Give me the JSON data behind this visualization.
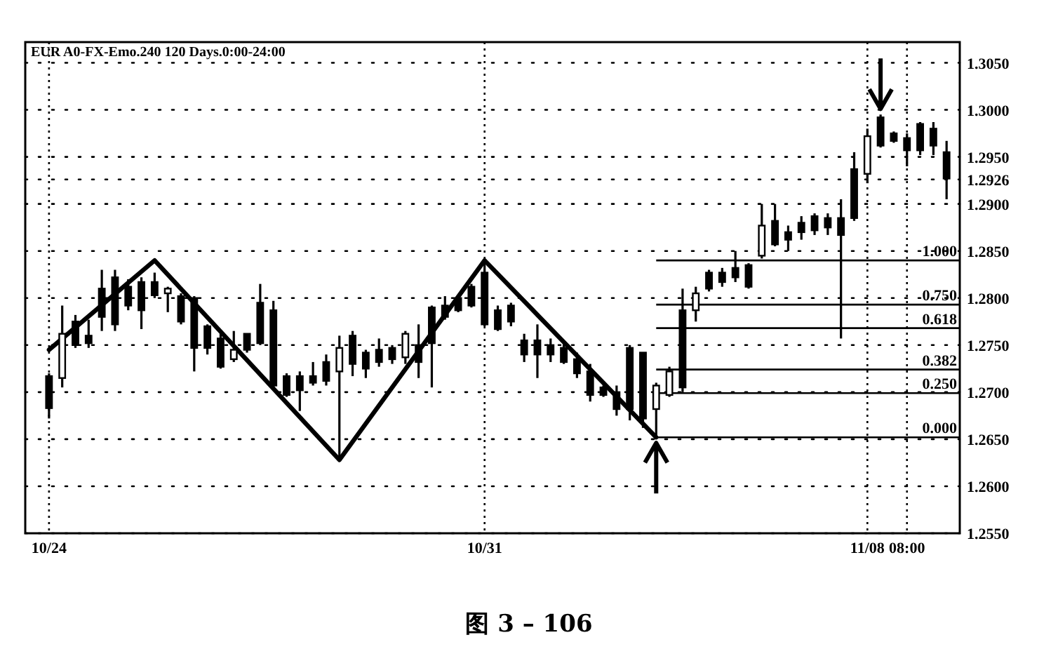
{
  "chart_data": {
    "type": "candlestick",
    "title": "EUR A0-FX-Emo.240  120 Days.0:00-24:00",
    "categories": [
      "10/24",
      null,
      null,
      null,
      null,
      null,
      null,
      null,
      null,
      null,
      null,
      null,
      null,
      null,
      null,
      null,
      null,
      null,
      null,
      null,
      null,
      null,
      null,
      null,
      null,
      null,
      null,
      null,
      null,
      null,
      null,
      null,
      null,
      "10/31",
      null,
      null,
      null,
      null,
      null,
      null,
      null,
      null,
      null,
      null,
      null,
      null,
      null,
      null,
      null,
      null,
      null,
      null,
      null,
      null,
      null,
      null,
      null,
      null,
      null,
      null,
      null,
      null,
      "11/08",
      null,
      null,
      "08:00",
      null,
      null,
      null
    ],
    "color": "#000000",
    "ohlc": [
      [
        1.2717,
        1.272,
        1.2672,
        1.2683
      ],
      [
        1.2715,
        1.2792,
        1.2705,
        1.2762
      ],
      [
        1.2775,
        1.2782,
        1.2747,
        1.275
      ],
      [
        1.276,
        1.2777,
        1.2747,
        1.2752
      ],
      [
        1.281,
        1.283,
        1.2765,
        1.278
      ],
      [
        1.2822,
        1.283,
        1.2765,
        1.2772
      ],
      [
        1.2812,
        1.282,
        1.2787,
        1.2792
      ],
      [
        1.2817,
        1.2822,
        1.2767,
        1.2787
      ],
      [
        1.2817,
        1.2827,
        1.28,
        1.2803
      ],
      [
        1.2805,
        1.2812,
        1.2785,
        1.281
      ],
      [
        1.2802,
        1.2805,
        1.2772,
        1.2775
      ],
      [
        1.28,
        1.2802,
        1.2722,
        1.2747
      ],
      [
        1.277,
        1.2772,
        1.274,
        1.2747
      ],
      [
        1.2757,
        1.2762,
        1.2725,
        1.2727
      ],
      [
        1.2735,
        1.2765,
        1.2732,
        1.2745
      ],
      [
        1.2762,
        1.2762,
        1.2742,
        1.2745
      ],
      [
        1.2795,
        1.2815,
        1.275,
        1.2752
      ],
      [
        1.2787,
        1.2797,
        1.2705,
        1.2707
      ],
      [
        1.2717,
        1.272,
        1.2695,
        1.2697
      ],
      [
        1.2717,
        1.2722,
        1.268,
        1.2702
      ],
      [
        1.2717,
        1.2732,
        1.2707,
        1.271
      ],
      [
        1.2732,
        1.274,
        1.2707,
        1.2712
      ],
      [
        1.2722,
        1.276,
        1.2628,
        1.2747
      ],
      [
        1.276,
        1.2765,
        1.2717,
        1.273
      ],
      [
        1.2742,
        1.2745,
        1.2715,
        1.2725
      ],
      [
        1.2745,
        1.2757,
        1.2727,
        1.2732
      ],
      [
        1.2747,
        1.275,
        1.273,
        1.2735
      ],
      [
        1.2737,
        1.2765,
        1.273,
        1.2762
      ],
      [
        1.275,
        1.2772,
        1.2715,
        1.2732
      ],
      [
        1.279,
        1.2792,
        1.2705,
        1.2752
      ],
      [
        1.2792,
        1.2802,
        1.2777,
        1.278
      ],
      [
        1.28,
        1.2802,
        1.2785,
        1.2787
      ],
      [
        1.2812,
        1.2815,
        1.279,
        1.2792
      ],
      [
        1.2827,
        1.284,
        1.277,
        1.2772
      ],
      [
        1.2787,
        1.2792,
        1.2765,
        1.2767
      ],
      [
        1.2792,
        1.2795,
        1.277,
        1.2775
      ],
      [
        1.2755,
        1.2762,
        1.2732,
        1.274
      ],
      [
        1.2755,
        1.2772,
        1.2715,
        1.274
      ],
      [
        1.275,
        1.2757,
        1.2732,
        1.274
      ],
      [
        1.2747,
        1.2752,
        1.273,
        1.2732
      ],
      [
        1.2735,
        1.2742,
        1.2715,
        1.272
      ],
      [
        1.2722,
        1.273,
        1.269,
        1.2697
      ],
      [
        1.2705,
        1.2707,
        1.2695,
        1.2697
      ],
      [
        1.27,
        1.2707,
        1.2675,
        1.2682
      ],
      [
        1.2747,
        1.275,
        1.267,
        1.2682
      ],
      [
        1.2742,
        1.2742,
        1.2662,
        1.2672
      ],
      [
        1.2682,
        1.271,
        1.2652,
        1.2707
      ],
      [
        1.2697,
        1.2727,
        1.2695,
        1.2722
      ],
      [
        1.2787,
        1.281,
        1.27,
        1.2705
      ],
      [
        1.2787,
        1.2812,
        1.2775,
        1.2805
      ],
      [
        1.2827,
        1.283,
        1.2807,
        1.281
      ],
      [
        1.2827,
        1.2832,
        1.2812,
        1.2817
      ],
      [
        1.2832,
        1.285,
        1.2817,
        1.2822
      ],
      [
        1.2835,
        1.2837,
        1.281,
        1.2812
      ],
      [
        1.2845,
        1.29,
        1.2842,
        1.2877
      ],
      [
        1.2882,
        1.29,
        1.2855,
        1.2857
      ],
      [
        1.287,
        1.2877,
        1.285,
        1.2862
      ],
      [
        1.288,
        1.2887,
        1.2862,
        1.287
      ],
      [
        1.2887,
        1.289,
        1.2867,
        1.2872
      ],
      [
        1.2885,
        1.289,
        1.2867,
        1.2875
      ],
      [
        1.2885,
        1.2905,
        1.2757,
        1.2867
      ],
      [
        1.2937,
        1.2955,
        1.2882,
        1.2885
      ],
      [
        1.2932,
        1.298,
        1.2922,
        1.2972
      ],
      [
        1.2992,
        1.2995,
        1.296,
        1.2962
      ],
      [
        1.2975,
        1.2977,
        1.2965,
        1.2967
      ],
      [
        1.297,
        1.2975,
        1.294,
        1.2957
      ],
      [
        1.2985,
        1.2987,
        1.2952,
        1.2957
      ],
      [
        1.298,
        1.2987,
        1.2952,
        1.2962
      ],
      [
        1.2955,
        1.2967,
        1.2905,
        1.2927
      ]
    ],
    "series": [
      {
        "type": "line",
        "color": "#000000",
        "values": [
          1.2745,
          null,
          null,
          null,
          null,
          null,
          null,
          null,
          1.284,
          null,
          null,
          null,
          null,
          null,
          null,
          null,
          null,
          null,
          null,
          null,
          null,
          null,
          1.2628,
          null,
          null,
          null,
          null,
          null,
          null,
          null,
          null,
          null,
          null,
          1.284,
          null,
          null,
          null,
          null,
          null,
          null,
          null,
          null,
          null,
          null,
          null,
          null,
          1.2652,
          null,
          null,
          null,
          null,
          null,
          null,
          null,
          null,
          null,
          null,
          null,
          null,
          null,
          null,
          null,
          null,
          null,
          null,
          null,
          null,
          null,
          null
        ]
      }
    ],
    "ylim": [
      1.255,
      1.3072
    ],
    "yticks": [
      {
        "value": 1.255,
        "label": "1.2550"
      },
      {
        "value": 1.26,
        "label": "1.2600"
      },
      {
        "value": 1.265,
        "label": "1.2650"
      },
      {
        "value": 1.27,
        "label": "1.2700"
      },
      {
        "value": 1.275,
        "label": "1.2750"
      },
      {
        "value": 1.28,
        "label": "1.2800"
      },
      {
        "value": 1.285,
        "label": "1.2850"
      },
      {
        "value": 1.29,
        "label": "1.2900"
      },
      {
        "value": 1.2926,
        "label": "1.2926"
      },
      {
        "value": 1.295,
        "label": "1.2950"
      },
      {
        "value": 1.3,
        "label": "1.3000"
      },
      {
        "value": 1.305,
        "label": "1.3050"
      }
    ],
    "grid": true,
    "ref_lines": [
      {
        "axis": "y",
        "value": 1.284
      },
      {
        "axis": "y",
        "value": 1.2793
      },
      {
        "axis": "y",
        "value": 1.2768
      },
      {
        "axis": "y",
        "value": 1.2724
      },
      {
        "axis": "y",
        "value": 1.2699
      },
      {
        "axis": "y",
        "value": 1.2652
      }
    ],
    "annotations": [
      {
        "text": "1.000",
        "y": 1.284
      },
      {
        "text": "0.750",
        "y": 1.2793
      },
      {
        "text": "0.618",
        "y": 1.2768
      },
      {
        "text": "0.382",
        "y": 1.2724
      },
      {
        "text": "0.250",
        "y": 1.2699
      },
      {
        "text": "0.000",
        "y": 1.2652
      },
      "图 3 – 106"
    ]
  }
}
